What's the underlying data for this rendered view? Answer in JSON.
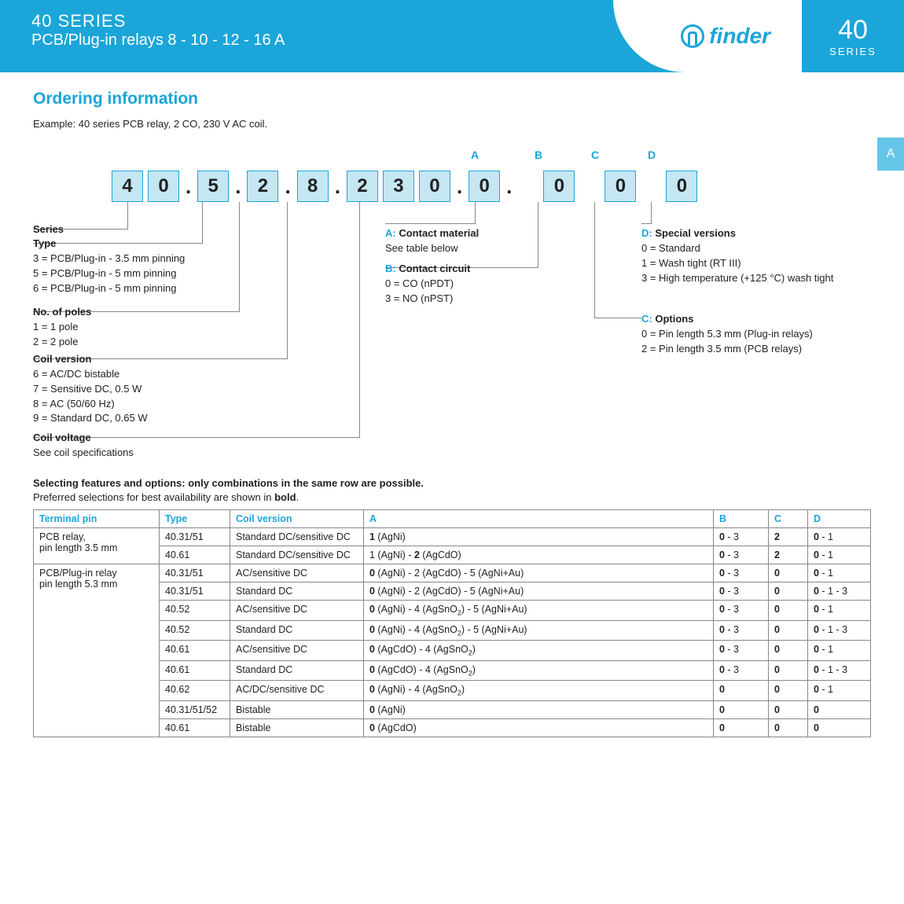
{
  "header": {
    "title": "40 SERIES",
    "sub": "PCB/Plug-in relays 8 - 10 - 12 - 16 A",
    "brand": "finder",
    "corner_big": "40",
    "corner_small": "SERIES",
    "tab": "A"
  },
  "section": {
    "title": "Ordering information",
    "example": "Example: 40 series PCB relay, 2 CO, 230 V AC coil."
  },
  "code": {
    "digits": [
      "4",
      "0",
      "5",
      "2",
      "8",
      "2",
      "3",
      "0",
      "0",
      "0",
      "0",
      "0"
    ],
    "heads": {
      "A": "A",
      "B": "B",
      "C": "C",
      "D": "D"
    }
  },
  "left": {
    "series": "Series",
    "type_lbl": "Type",
    "type": [
      "3 = PCB/Plug-in - 3.5 mm pinning",
      "5 = PCB/Plug-in - 5 mm pinning",
      "6 = PCB/Plug-in - 5 mm pinning"
    ],
    "poles_lbl": "No. of poles",
    "poles": [
      "1 = 1 pole",
      "2 = 2 pole"
    ],
    "coilv_lbl": "Coil version",
    "coilv": [
      "6 = AC/DC bistable",
      "7 = Sensitive DC, 0.5 W",
      "8 = AC (50/60 Hz)",
      "9 = Standard DC, 0.65 W"
    ],
    "cvolt_lbl": "Coil voltage",
    "cvolt": "See coil specifications"
  },
  "mid": {
    "a_lbl": "A: Contact material",
    "a_txt": "See table below",
    "b_lbl": "B: Contact circuit",
    "b_txt": [
      "0 = CO (nPDT)",
      "3 = NO (nPST)"
    ]
  },
  "right": {
    "d_lbl": "D: Special versions",
    "d_txt": [
      "0 = Standard",
      "1 = Wash tight (RT III)",
      "3 = High temperature (+125 °C) wash tight"
    ],
    "c_lbl": "C: Options",
    "c_txt": [
      "0 = Pin length 5.3 mm (Plug-in relays)",
      "2 = Pin length 3.5 mm (PCB relays)"
    ]
  },
  "selhead": "Selecting features and options: only combinations in the same row are possible.",
  "selsub_a": "Preferred selections for best availability are shown in ",
  "selsub_b": "bold",
  "selsub_c": ".",
  "table": {
    "cols": [
      "Terminal pin",
      "Type",
      "Coil version",
      "A",
      "B",
      "C",
      "D"
    ],
    "rows": [
      {
        "pin": "PCB relay,\npin length 3.5 mm",
        "span": 2,
        "type": "40.31/51",
        "cv": "Standard DC/sensitive DC",
        "a": "<b>1</b> (AgNi)",
        "b": "<b>0</b> - 3",
        "c": "<b>2</b>",
        "d": "<b>0</b> - 1"
      },
      {
        "type": "40.61",
        "cv": "Standard DC/sensitive DC",
        "a": "1 (AgNi) - <b>2</b> (AgCdO)",
        "b": "<b>0</b> - 3",
        "c": "<b>2</b>",
        "d": "<b>0</b> - 1"
      },
      {
        "pin": "PCB/Plug-in relay\npin length 5.3 mm",
        "span": 9,
        "type": "40.31/51",
        "cv": "AC/sensitive DC",
        "a": "<b>0</b> (AgNi) - 2 (AgCdO) - 5 (AgNi+Au)",
        "b": "<b>0</b> - 3",
        "c": "<b>0</b>",
        "d": "<b>0</b> - 1"
      },
      {
        "type": "40.31/51",
        "cv": "Standard DC",
        "a": "<b>0</b> (AgNi) - 2 (AgCdO) - 5 (AgNi+Au)",
        "b": "<b>0</b> - 3",
        "c": "<b>0</b>",
        "d": "<b>0</b> - 1 - 3"
      },
      {
        "type": "40.52",
        "cv": "AC/sensitive DC",
        "a": "<b>0</b> (AgNi) - 4 (AgSnO<sub>2</sub>) - 5 (AgNi+Au)",
        "b": "<b>0</b> - 3",
        "c": "<b>0</b>",
        "d": "<b>0</b> - 1"
      },
      {
        "type": "40.52",
        "cv": "Standard DC",
        "a": "<b>0</b> (AgNi) - 4 (AgSnO<sub>2</sub>) - 5 (AgNi+Au)",
        "b": "<b>0</b> - 3",
        "c": "<b>0</b>",
        "d": "<b>0</b> - 1 - 3"
      },
      {
        "type": "40.61",
        "cv": "AC/sensitive DC",
        "a": "<b>0</b> (AgCdO) - 4 (AgSnO<sub>2</sub>)",
        "b": "<b>0</b> - 3",
        "c": "<b>0</b>",
        "d": "<b>0</b> - 1"
      },
      {
        "type": "40.61",
        "cv": "Standard DC",
        "a": "<b>0</b> (AgCdO) - 4 (AgSnO<sub>2</sub>)",
        "b": "<b>0</b> - 3",
        "c": "<b>0</b>",
        "d": "<b>0</b> - 1 - 3"
      },
      {
        "type": "40.62",
        "cv": "AC/DC/sensitive DC",
        "a": "<b>0</b> (AgNi) - 4 (AgSnO<sub>2</sub>)",
        "b": "<b>0</b>",
        "c": "<b>0</b>",
        "d": "<b>0</b> - 1"
      },
      {
        "type": "40.31/51/52",
        "cv": "Bistable",
        "a": "<b>0</b> (AgNi)",
        "b": "<b>0</b>",
        "c": "<b>0</b>",
        "d": "<b>0</b>"
      },
      {
        "type": "40.61",
        "cv": "Bistable",
        "a": "<b>0</b> (AgCdO)",
        "b": "<b>0</b>",
        "c": "<b>0</b>",
        "d": "<b>0</b>"
      }
    ]
  },
  "colors": {
    "brand": "#1ba5d8",
    "box": "#c5e6f3",
    "line": "#888"
  }
}
